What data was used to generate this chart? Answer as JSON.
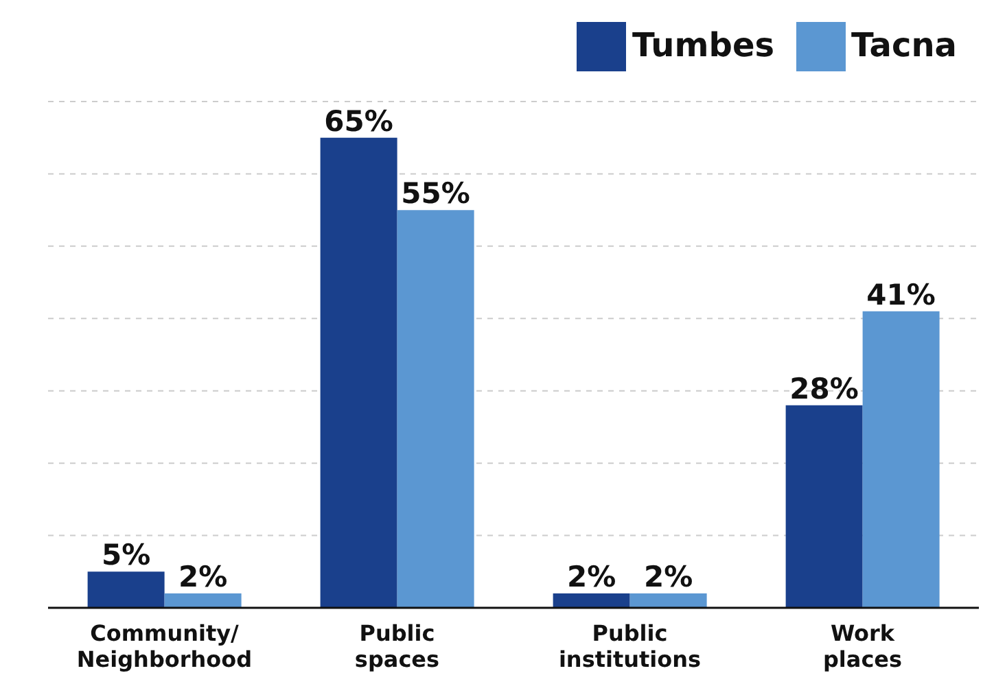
{
  "chart_data": {
    "type": "bar",
    "categories": [
      "Community/ Neighborhood",
      "Public spaces",
      "Public institutions",
      "Work places"
    ],
    "series": [
      {
        "name": "Tumbes",
        "color": "#1a408c",
        "values": [
          5,
          65,
          2,
          28
        ],
        "value_labels": [
          "5%",
          "65%",
          "2%",
          "28%"
        ]
      },
      {
        "name": "Tacna",
        "color": "#5b97d2",
        "values": [
          2,
          55,
          2,
          41
        ],
        "value_labels": [
          "2%",
          "55%",
          "2%",
          "41%"
        ]
      }
    ],
    "ylim": [
      0,
      70
    ],
    "yticks": [
      0,
      10,
      20,
      30,
      40,
      50,
      60,
      70
    ],
    "tick_labels": "x",
    "grid": "y",
    "legend": "top right"
  }
}
